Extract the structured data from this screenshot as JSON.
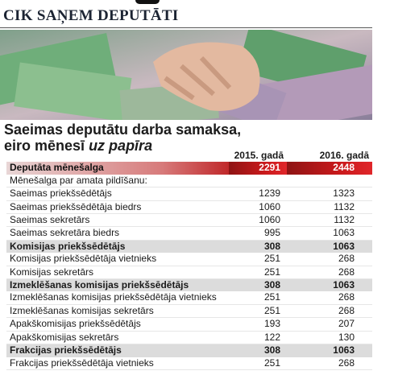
{
  "header": {
    "kicker": "CIK SAŅEM DEPUTĀTI"
  },
  "title": {
    "line1": "Saeimas deputātu darba samaksa,",
    "line2": "eiro mēnesī",
    "line2_emphasis": "uz papīra"
  },
  "table": {
    "columns": [
      "2015. gadā",
      "2016. gadā"
    ],
    "rows": [
      [
        "Deputāta mēnešalga",
        2291,
        2448
      ],
      [
        "Mēnešalga par amata pildīšanu:"
      ],
      [
        "Saeimas priekšsēdētājs",
        1239,
        1323
      ],
      [
        "Saeimas priekšsēdētāja biedrs",
        1060,
        1132
      ],
      [
        "Saeimas sekretārs",
        1060,
        1132
      ],
      [
        "Saeimas sekretāra biedrs",
        995,
        1063
      ],
      [
        "Komisijas priekšsēdētājs",
        308,
        1063
      ],
      [
        "Komisijas priekšsēdētāja vietnieks",
        251,
        268
      ],
      [
        "Komisijas sekretārs",
        251,
        268
      ],
      [
        "Izmeklēšanas komisijas priekšsēdētājs",
        308,
        1063
      ],
      [
        "Izmeklēšanas komisijas priekšsēdētāja vietnieks",
        251,
        268
      ],
      [
        "Izmeklēšanas komisijas sekretārs",
        251,
        268
      ],
      [
        "Apakškomisijas priekšsēdētājs",
        193,
        207
      ],
      [
        "Apakškomisijas sekretārs",
        122,
        130
      ],
      [
        "Frakcijas priekšsēdētājs",
        308,
        1063
      ],
      [
        "Frakcijas priekšsēdētāja vietnieks",
        251,
        268
      ]
    ]
  }
}
